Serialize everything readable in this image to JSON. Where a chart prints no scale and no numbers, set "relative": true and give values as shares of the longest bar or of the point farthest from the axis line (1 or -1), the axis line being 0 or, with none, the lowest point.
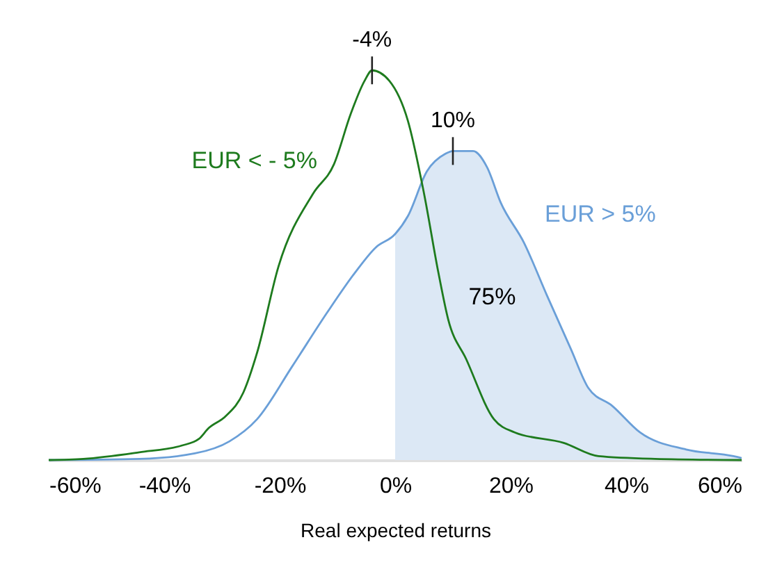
{
  "chart_data": {
    "type": "line",
    "relative": true,
    "xlabel": "Real expected returns",
    "grid": false,
    "marker": "none",
    "line_style": "solid",
    "xlim": [
      -60,
      60
    ],
    "xticks": [
      {
        "value": -60,
        "label": "-60%"
      },
      {
        "value": -40,
        "label": "-40%"
      },
      {
        "value": -20,
        "label": "-20%"
      },
      {
        "value": 0,
        "label": "0%"
      },
      {
        "value": 20,
        "label": "20%"
      },
      {
        "value": 40,
        "label": "40%"
      },
      {
        "value": 60,
        "label": "60%"
      }
    ],
    "series": [
      {
        "type": "area",
        "color": "#dce8f5",
        "x": [
          0,
          2.2,
          5.5,
          8.7,
          10,
          13.5,
          15.9,
          18.3,
          22.3,
          26.3,
          30.4,
          33.5,
          37.6,
          42.4,
          50.4,
          58.6,
          60
        ],
        "values": [
          0.58,
          0.626,
          0.741,
          0.786,
          0.793,
          0.793,
          0.752,
          0.66,
          0.558,
          0.422,
          0.286,
          0.184,
          0.139,
          0.071,
          0.027,
          0.01,
          0.005
        ]
      },
      {
        "name": "EUR > 5%",
        "color": "#6a9fd8",
        "x": [
          -60,
          -44.3,
          -34.7,
          -28.7,
          -23.9,
          -17.8,
          -11.8,
          -7,
          -3.4,
          0,
          2.2,
          5.5,
          8.7,
          10,
          13.5,
          15.9,
          18.3,
          22.3,
          26.3,
          30.4,
          33.5,
          37.6,
          42.4,
          50.4,
          58.6,
          60
        ],
        "values": [
          0,
          0.003,
          0.017,
          0.048,
          0.105,
          0.241,
          0.378,
          0.48,
          0.545,
          0.58,
          0.626,
          0.741,
          0.786,
          0.793,
          0.793,
          0.752,
          0.66,
          0.558,
          0.422,
          0.286,
          0.184,
          0.139,
          0.071,
          0.027,
          0.01,
          0.005
        ]
      },
      {
        "name": "EUR < - 5%",
        "color": "#1e7b1e",
        "x": [
          -60,
          -54,
          -44.3,
          -37,
          -34,
          -32.3,
          -29.4,
          -26.3,
          -23.9,
          -20.2,
          -14.2,
          -10.6,
          -7.7,
          -5.3,
          -4,
          -1,
          2.2,
          5,
          7.5,
          9.2,
          12.3,
          17.1,
          20.7,
          29.2,
          35.2,
          45,
          60
        ],
        "values": [
          0,
          0.003,
          0.02,
          0.037,
          0.054,
          0.082,
          0.112,
          0.173,
          0.276,
          0.497,
          0.684,
          0.759,
          0.888,
          0.973,
          1,
          0.973,
          0.871,
          0.684,
          0.48,
          0.36,
          0.259,
          0.105,
          0.071,
          0.044,
          0.01,
          0.003,
          0
        ]
      }
    ],
    "annotations": [
      {
        "text": "-4%",
        "x": -4,
        "y": 1
      },
      {
        "text": "10%",
        "x": 10,
        "y": 0.793
      },
      "75%"
    ]
  }
}
